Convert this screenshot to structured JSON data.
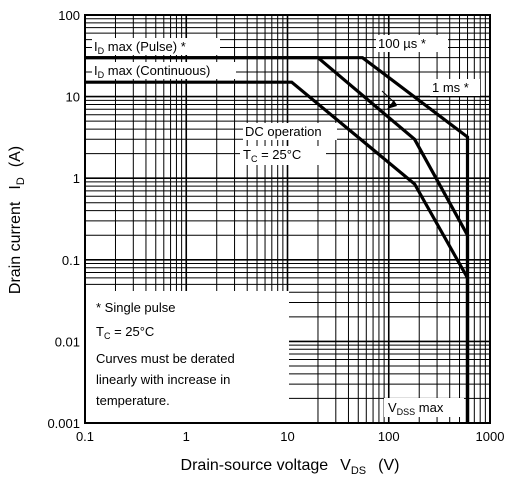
{
  "chart_data": {
    "type": "line",
    "title": "",
    "scale": {
      "x": "log",
      "y": "log"
    },
    "xlim": [
      0.1,
      1000
    ],
    "ylim": [
      0.001,
      100
    ],
    "grid": true,
    "x_ticks": [
      "0.1",
      "1",
      "10",
      "100",
      "1000"
    ],
    "y_ticks": [
      "0.001",
      "0.01",
      "0.1",
      "1",
      "10",
      "100"
    ],
    "xlabel": {
      "main": "Drain-source voltage",
      "sym": "V",
      "sub": "DS",
      "unit": "(V)"
    },
    "ylabel": {
      "main": "Drain current",
      "sym": "I",
      "sub": "D",
      "unit": "(A)"
    },
    "series": [
      {
        "label": "100 µs *",
        "points": [
          [
            0.1,
            30
          ],
          [
            20,
            30
          ],
          [
            55,
            30
          ],
          [
            600,
            3.2
          ],
          [
            600,
            0.001
          ]
        ]
      },
      {
        "label": "1 ms *",
        "points": [
          [
            0.1,
            30
          ],
          [
            20,
            30
          ],
          [
            180,
            3.0
          ],
          [
            600,
            0.2
          ],
          [
            600,
            0.001
          ]
        ]
      },
      {
        "label": "DC operation",
        "points": [
          [
            0.1,
            15
          ],
          [
            11,
            15
          ],
          [
            180,
            0.85
          ],
          [
            600,
            0.06
          ],
          [
            600,
            0.001
          ]
        ]
      }
    ],
    "annotations": {
      "id_pulse": {
        "main": "I",
        "sub": "D",
        "rest": " max (Pulse) *"
      },
      "id_cont": {
        "main": "I",
        "sub": "D",
        "rest": " max (Continuous)"
      },
      "us100": "100 µs *",
      "ms1": "1 ms *",
      "dc": "DC operation",
      "tc": {
        "main": "T",
        "sub": "C",
        "rest": " = 25°C"
      },
      "vdss": {
        "main": "V",
        "sub": "DSS",
        "rest": " max"
      }
    },
    "note": {
      "line1": "*   Single pulse",
      "tc": {
        "main": "T",
        "sub": "C",
        "rest": " = 25°C"
      },
      "line3": "Curves must be derated",
      "line4": "linearly with increase in",
      "line5": "temperature."
    }
  }
}
